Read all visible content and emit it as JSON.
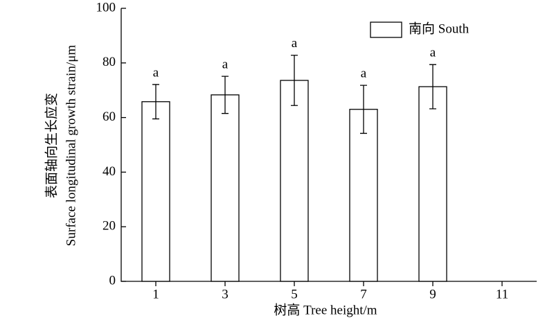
{
  "chart_data": {
    "type": "bar",
    "x_label": "树高 Tree height/m",
    "y_label": [
      "表面轴向生长应变",
      "Surface longitudinal growth strain/μm"
    ],
    "x": [
      1,
      3,
      5,
      7,
      9
    ],
    "series": [
      {
        "name": "南向 South",
        "color": "#ffffff",
        "values": [
          65.8,
          68.3,
          73.6,
          63,
          71.3
        ],
        "errors": [
          6.3,
          6.8,
          9.2,
          8.8,
          8.1
        ],
        "significance": [
          "a",
          "a",
          "a",
          "a",
          "a"
        ]
      }
    ],
    "xlim": [
      0,
      12
    ],
    "xticks": [
      1,
      3,
      5,
      7,
      9,
      11
    ],
    "ylim": [
      0,
      100
    ],
    "yticks": [
      0,
      20,
      40,
      60,
      80,
      100
    ],
    "legend": "upper right"
  }
}
